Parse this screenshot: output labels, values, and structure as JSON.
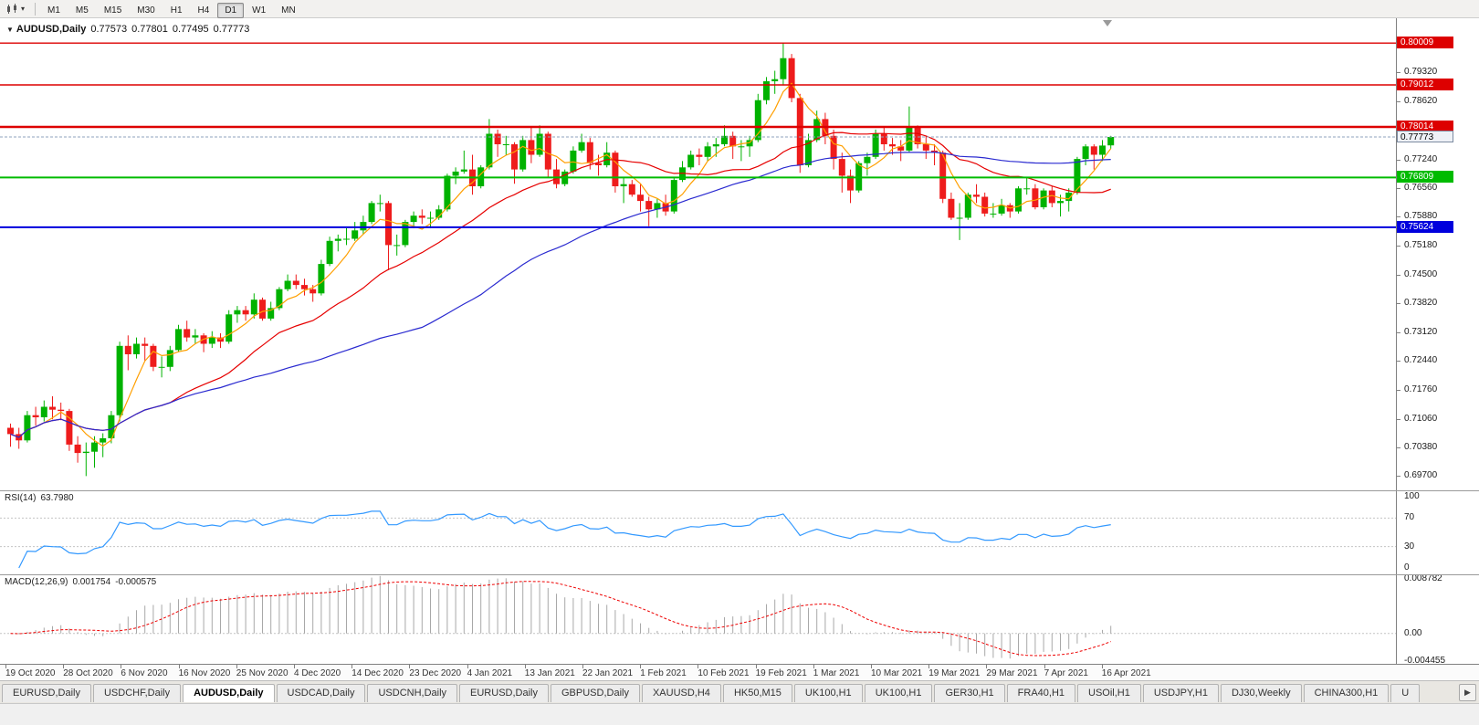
{
  "toolbar": {
    "timeframes": [
      "M1",
      "M5",
      "M15",
      "M30",
      "H1",
      "H4",
      "D1",
      "W1",
      "MN"
    ],
    "active": "D1"
  },
  "icons": {
    "chart_selector": "candlestick-chart-icon",
    "chart_selector_caret": "chevron-down-icon",
    "title_collapse": "collapse-triangle-icon",
    "chart_shift": "chart-shift-marker-icon",
    "tabs_scroll": "scroll-right-icon"
  },
  "chart": {
    "header": {
      "collapse_glyph": "▼",
      "symbol": "AUDUSD,Daily",
      "open": "0.77573",
      "high": "0.77801",
      "low": "0.77495",
      "close": "0.77773"
    }
  },
  "current_price": {
    "value": "0.77773",
    "price": 0.77773,
    "line_color": "#8fa3bd"
  },
  "levels": [
    {
      "price": 0.80009,
      "label": "0.80009",
      "color": "#dd0000"
    },
    {
      "price": 0.79012,
      "label": "0.79012",
      "color": "#dd0000"
    },
    {
      "price": 0.78014,
      "label": "0.78014",
      "color": "#dd0000"
    },
    {
      "price": 0.76809,
      "label": "0.76809",
      "color": "#00bb00"
    },
    {
      "price": 0.75624,
      "label": "0.75624",
      "color": "#0000dd"
    }
  ],
  "price_scale": {
    "labels": [
      "0.79320",
      "0.78620",
      "0.77920",
      "0.77240",
      "0.76560",
      "0.75880",
      "0.75180",
      "0.74500",
      "0.73820",
      "0.73120",
      "0.72440",
      "0.71760",
      "0.71060",
      "0.70380",
      "0.69700"
    ]
  },
  "rsi": {
    "label": "RSI(14)",
    "value": "63.7980",
    "line_color": "#3399ff",
    "scale_labels": [
      "100",
      "70",
      "30",
      "0"
    ],
    "dashed_levels": [
      70,
      30
    ]
  },
  "macd": {
    "label": "MACD(12,26,9)",
    "value_main": "0.001754",
    "value_signal": "-0.000575",
    "histogram_color": "#a8a8a8",
    "signal_color": "#ee0000",
    "scale_labels": [
      "0.008782",
      "0.00",
      "-0.004455"
    ]
  },
  "tabs": [
    {
      "label": "EURUSD,Daily",
      "active": false
    },
    {
      "label": "USDCHF,Daily",
      "active": false
    },
    {
      "label": "AUDUSD,Daily",
      "active": true
    },
    {
      "label": "USDCAD,Daily",
      "active": false
    },
    {
      "label": "USDCNH,Daily",
      "active": false
    },
    {
      "label": "EURUSD,Daily",
      "active": false
    },
    {
      "label": "GBPUSD,Daily",
      "active": false
    },
    {
      "label": "XAUUSD,H4",
      "active": false
    },
    {
      "label": "HK50,M15",
      "active": false
    },
    {
      "label": "UK100,H1",
      "active": false
    },
    {
      "label": "UK100,H1",
      "active": false
    },
    {
      "label": "GER30,H1",
      "active": false
    },
    {
      "label": "FRA40,H1",
      "active": false
    },
    {
      "label": "USOil,H1",
      "active": false
    },
    {
      "label": "USDJPY,H1",
      "active": false
    },
    {
      "label": "DJ30,Weekly",
      "active": false
    },
    {
      "label": "CHINA300,H1",
      "active": false
    },
    {
      "label": "U",
      "active": false
    }
  ],
  "chart_data": {
    "type": "candlestick",
    "symbol": "AUDUSD",
    "timeframe": "Daily",
    "colors": {
      "up": "#00b200",
      "down": "#ee1c1c"
    },
    "overlays": [
      {
        "name": "MA fast",
        "period": 5,
        "color": "#ff9f00"
      },
      {
        "name": "MA medium",
        "period": 20,
        "color": "#e60000"
      },
      {
        "name": "MA slow",
        "period": 50,
        "color": "#2a2ad0"
      }
    ],
    "date_labels": [
      "19 Oct 2020",
      "28 Oct 2020",
      "6 Nov 2020",
      "16 Nov 2020",
      "25 Nov 2020",
      "4 Dec 2020",
      "14 Dec 2020",
      "23 Dec 2020",
      "4 Jan 2021",
      "13 Jan 2021",
      "22 Jan 2021",
      "1 Feb 2021",
      "10 Feb 2021",
      "19 Feb 2021",
      "1 Mar 2021",
      "10 Mar 2021",
      "19 Mar 2021",
      "29 Mar 2021",
      "7 Apr 2021",
      "16 Apr 2021"
    ],
    "candles": [
      [
        0.7085,
        0.7095,
        0.704,
        0.707
      ],
      [
        0.707,
        0.7085,
        0.7035,
        0.7055
      ],
      [
        0.7055,
        0.7125,
        0.705,
        0.7115
      ],
      [
        0.7115,
        0.7135,
        0.709,
        0.711
      ],
      [
        0.711,
        0.715,
        0.71,
        0.7135
      ],
      [
        0.7135,
        0.716,
        0.7105,
        0.7128
      ],
      [
        0.7128,
        0.7145,
        0.7103,
        0.7125
      ],
      [
        0.7125,
        0.713,
        0.703,
        0.7045
      ],
      [
        0.7045,
        0.7065,
        0.7002,
        0.7025
      ],
      [
        0.7025,
        0.705,
        0.697,
        0.7028
      ],
      [
        0.7028,
        0.7065,
        0.699,
        0.705
      ],
      [
        0.705,
        0.7072,
        0.7015,
        0.706
      ],
      [
        0.706,
        0.7125,
        0.7048,
        0.7115
      ],
      [
        0.7115,
        0.729,
        0.71,
        0.728
      ],
      [
        0.728,
        0.7305,
        0.7222,
        0.726
      ],
      [
        0.726,
        0.73,
        0.725,
        0.7285
      ],
      [
        0.7285,
        0.73,
        0.7245,
        0.728
      ],
      [
        0.728,
        0.7285,
        0.722,
        0.723
      ],
      [
        0.723,
        0.7255,
        0.7205,
        0.723
      ],
      [
        0.723,
        0.728,
        0.722,
        0.727
      ],
      [
        0.727,
        0.733,
        0.7265,
        0.732
      ],
      [
        0.732,
        0.734,
        0.729,
        0.73
      ],
      [
        0.73,
        0.732,
        0.7285,
        0.7305
      ],
      [
        0.7305,
        0.731,
        0.7265,
        0.7285
      ],
      [
        0.7285,
        0.7315,
        0.7275,
        0.73
      ],
      [
        0.73,
        0.731,
        0.7275,
        0.729
      ],
      [
        0.729,
        0.7365,
        0.7285,
        0.7355
      ],
      [
        0.7355,
        0.7375,
        0.7335,
        0.7365
      ],
      [
        0.7365,
        0.7375,
        0.734,
        0.7355
      ],
      [
        0.7355,
        0.7405,
        0.7345,
        0.739
      ],
      [
        0.739,
        0.7395,
        0.734,
        0.7345
      ],
      [
        0.7345,
        0.7385,
        0.734,
        0.737
      ],
      [
        0.737,
        0.742,
        0.7365,
        0.7415
      ],
      [
        0.7415,
        0.745,
        0.741,
        0.7435
      ],
      [
        0.7435,
        0.745,
        0.7415,
        0.7425
      ],
      [
        0.7425,
        0.744,
        0.74,
        0.7415
      ],
      [
        0.7415,
        0.7425,
        0.7385,
        0.7405
      ],
      [
        0.7405,
        0.7485,
        0.74,
        0.7475
      ],
      [
        0.7475,
        0.754,
        0.747,
        0.753
      ],
      [
        0.753,
        0.7545,
        0.7505,
        0.7535
      ],
      [
        0.7535,
        0.756,
        0.752,
        0.7535
      ],
      [
        0.7535,
        0.7575,
        0.753,
        0.7555
      ],
      [
        0.7555,
        0.759,
        0.7545,
        0.7575
      ],
      [
        0.7575,
        0.7625,
        0.757,
        0.762
      ],
      [
        0.762,
        0.764,
        0.76,
        0.762
      ],
      [
        0.762,
        0.7625,
        0.746,
        0.752
      ],
      [
        0.752,
        0.7545,
        0.7495,
        0.752
      ],
      [
        0.752,
        0.758,
        0.7515,
        0.7575
      ],
      [
        0.7575,
        0.76,
        0.756,
        0.759
      ],
      [
        0.759,
        0.7605,
        0.757,
        0.7585
      ],
      [
        0.7585,
        0.76,
        0.756,
        0.7585
      ],
      [
        0.7585,
        0.7615,
        0.758,
        0.7605
      ],
      [
        0.7605,
        0.769,
        0.76,
        0.7685
      ],
      [
        0.7685,
        0.7705,
        0.7665,
        0.7695
      ],
      [
        0.7695,
        0.7745,
        0.769,
        0.77
      ],
      [
        0.77,
        0.7735,
        0.764,
        0.766
      ],
      [
        0.766,
        0.771,
        0.7655,
        0.7705
      ],
      [
        0.7705,
        0.782,
        0.77,
        0.7785
      ],
      [
        0.7785,
        0.7795,
        0.773,
        0.776
      ],
      [
        0.776,
        0.778,
        0.7735,
        0.776
      ],
      [
        0.776,
        0.7765,
        0.7666,
        0.77
      ],
      [
        0.77,
        0.778,
        0.7695,
        0.777
      ],
      [
        0.777,
        0.78,
        0.7715,
        0.7735
      ],
      [
        0.7735,
        0.7805,
        0.773,
        0.7785
      ],
      [
        0.7785,
        0.779,
        0.768,
        0.77
      ],
      [
        0.77,
        0.7725,
        0.7655,
        0.7665
      ],
      [
        0.7665,
        0.77,
        0.766,
        0.7695
      ],
      [
        0.7695,
        0.7755,
        0.769,
        0.7745
      ],
      [
        0.7745,
        0.7785,
        0.774,
        0.7765
      ],
      [
        0.7765,
        0.7775,
        0.77,
        0.7715
      ],
      [
        0.7715,
        0.7735,
        0.7685,
        0.771
      ],
      [
        0.771,
        0.7765,
        0.7705,
        0.774
      ],
      [
        0.774,
        0.7745,
        0.7645,
        0.766
      ],
      [
        0.766,
        0.768,
        0.762,
        0.7665
      ],
      [
        0.7665,
        0.7675,
        0.7635,
        0.764
      ],
      [
        0.764,
        0.7665,
        0.76,
        0.7625
      ],
      [
        0.7625,
        0.7635,
        0.7565,
        0.7605
      ],
      [
        0.7605,
        0.763,
        0.7585,
        0.762
      ],
      [
        0.762,
        0.764,
        0.759,
        0.76
      ],
      [
        0.76,
        0.768,
        0.7595,
        0.7675
      ],
      [
        0.7675,
        0.772,
        0.767,
        0.7705
      ],
      [
        0.7705,
        0.7745,
        0.77,
        0.7735
      ],
      [
        0.7735,
        0.775,
        0.771,
        0.773
      ],
      [
        0.773,
        0.7765,
        0.772,
        0.7755
      ],
      [
        0.7755,
        0.7775,
        0.773,
        0.776
      ],
      [
        0.776,
        0.7805,
        0.7755,
        0.778
      ],
      [
        0.778,
        0.779,
        0.7725,
        0.7755
      ],
      [
        0.7755,
        0.777,
        0.772,
        0.7755
      ],
      [
        0.7755,
        0.778,
        0.773,
        0.777
      ],
      [
        0.777,
        0.788,
        0.7765,
        0.7865
      ],
      [
        0.7865,
        0.792,
        0.7855,
        0.791
      ],
      [
        0.791,
        0.7935,
        0.788,
        0.7915
      ],
      [
        0.7915,
        0.8001,
        0.79,
        0.7965
      ],
      [
        0.7965,
        0.7975,
        0.786,
        0.787
      ],
      [
        0.787,
        0.788,
        0.7692,
        0.771
      ],
      [
        0.771,
        0.7785,
        0.7705,
        0.777
      ],
      [
        0.777,
        0.784,
        0.7765,
        0.782
      ],
      [
        0.782,
        0.7835,
        0.776,
        0.778
      ],
      [
        0.778,
        0.7795,
        0.77,
        0.7725
      ],
      [
        0.7725,
        0.774,
        0.7645,
        0.7685
      ],
      [
        0.7685,
        0.77,
        0.762,
        0.765
      ],
      [
        0.765,
        0.772,
        0.7645,
        0.7715
      ],
      [
        0.7715,
        0.774,
        0.7685,
        0.773
      ],
      [
        0.773,
        0.7795,
        0.7725,
        0.7785
      ],
      [
        0.7785,
        0.78,
        0.7745,
        0.776
      ],
      [
        0.776,
        0.7775,
        0.7735,
        0.7755
      ],
      [
        0.7755,
        0.777,
        0.772,
        0.7745
      ],
      [
        0.7745,
        0.785,
        0.774,
        0.78
      ],
      [
        0.78,
        0.7805,
        0.775,
        0.776
      ],
      [
        0.776,
        0.778,
        0.7725,
        0.7745
      ],
      [
        0.7745,
        0.776,
        0.771,
        0.774
      ],
      [
        0.774,
        0.7745,
        0.762,
        0.763
      ],
      [
        0.763,
        0.7645,
        0.758,
        0.7585
      ],
      [
        0.7585,
        0.762,
        0.7532,
        0.7585
      ],
      [
        0.7585,
        0.7645,
        0.758,
        0.764
      ],
      [
        0.764,
        0.7665,
        0.762,
        0.7635
      ],
      [
        0.7635,
        0.7645,
        0.7588,
        0.7595
      ],
      [
        0.7595,
        0.762,
        0.7585,
        0.7595
      ],
      [
        0.7595,
        0.763,
        0.759,
        0.7615
      ],
      [
        0.7615,
        0.762,
        0.7585,
        0.76
      ],
      [
        0.76,
        0.766,
        0.7595,
        0.7655
      ],
      [
        0.7655,
        0.768,
        0.764,
        0.7655
      ],
      [
        0.7655,
        0.7665,
        0.7605,
        0.761
      ],
      [
        0.761,
        0.7655,
        0.7605,
        0.765
      ],
      [
        0.765,
        0.766,
        0.761,
        0.762
      ],
      [
        0.762,
        0.764,
        0.7588,
        0.7625
      ],
      [
        0.7625,
        0.7655,
        0.76,
        0.7645
      ],
      [
        0.7645,
        0.773,
        0.764,
        0.7725
      ],
      [
        0.7725,
        0.776,
        0.771,
        0.7755
      ],
      [
        0.7755,
        0.776,
        0.77,
        0.7735
      ],
      [
        0.7735,
        0.777,
        0.772,
        0.7757
      ],
      [
        0.77573,
        0.77801,
        0.77495,
        0.77773
      ]
    ]
  }
}
